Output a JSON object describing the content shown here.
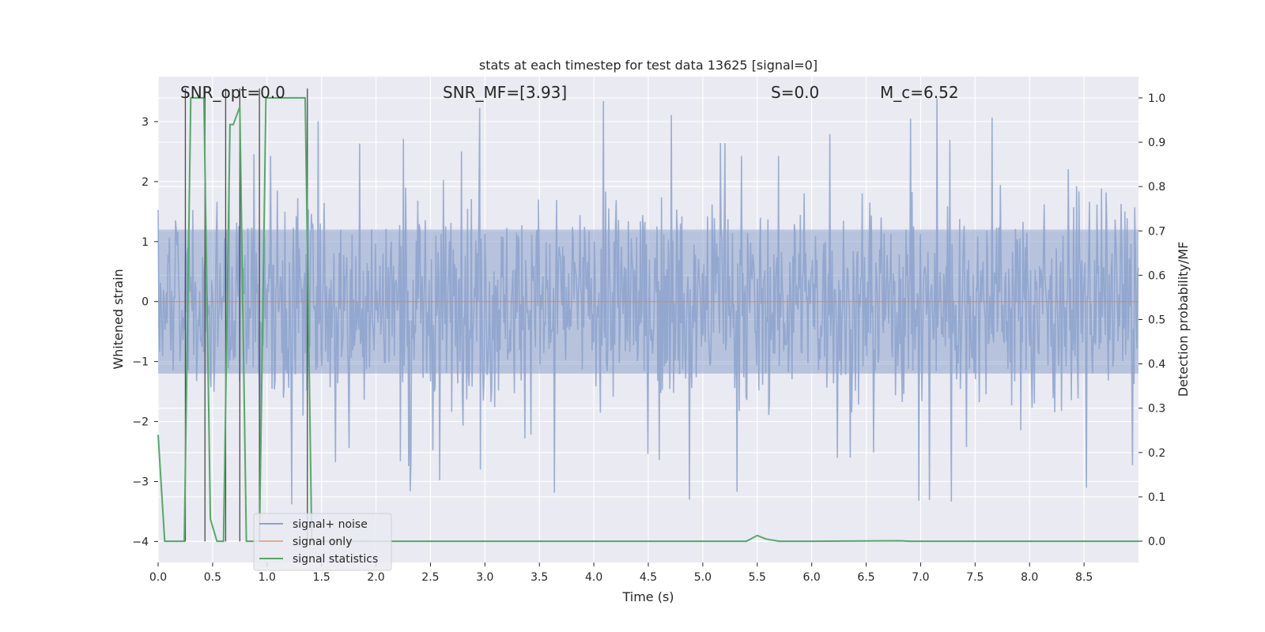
{
  "chart_data": {
    "type": "line",
    "title": "stats at each timestep for test data 13625 [signal=0]",
    "xlabel": "Time (s)",
    "ylabel": "Whitened strain",
    "y2label": "Detection probability/MF",
    "xlim": [
      0,
      9.0
    ],
    "ylim": [
      -4.35,
      3.75
    ],
    "y2lim": [
      -0.048,
      1.048
    ],
    "xticks": [
      "0.0",
      "0.5",
      "1.0",
      "1.5",
      "2.0",
      "2.5",
      "3.0",
      "3.5",
      "4.0",
      "4.5",
      "5.0",
      "5.5",
      "6.0",
      "6.5",
      "7.0",
      "7.5",
      "8.0",
      "8.5"
    ],
    "yticks": [
      "−4",
      "−3",
      "−2",
      "−1",
      "0",
      "1",
      "2",
      "3"
    ],
    "y2ticks": [
      "0.0",
      "0.1",
      "0.2",
      "0.3",
      "0.4",
      "0.5",
      "0.6",
      "0.7",
      "0.8",
      "0.9",
      "1.0"
    ],
    "grid": true,
    "legend_placement": "lower-left",
    "annotations": [
      {
        "id": "snr-opt",
        "text": "SNR_opt=0.0"
      },
      {
        "id": "snr-mf",
        "text": "SNR_MF=[3.93]"
      },
      {
        "id": "s-value",
        "text": "S=0.0"
      },
      {
        "id": "mc-value",
        "text": "M_c=6.52"
      }
    ],
    "series": [
      {
        "name": "signal+ noise",
        "color": "#8da3cc",
        "axis": "left",
        "description_level": "noise-like whitened strain, approx amplitude ±1.2 with spikes up to ±3.5",
        "envelope": {
          "upper_typical": 1.8,
          "lower_typical": -1.8,
          "max": 3.5,
          "min": -4.1
        }
      },
      {
        "name": "signal only",
        "color": "#dd8452",
        "axis": "left",
        "x": [
          0,
          9.0
        ],
        "y": [
          0,
          0
        ]
      },
      {
        "name": "signal statistics",
        "color": "#55a868",
        "axis": "right",
        "x": [
          0.0,
          0.06,
          0.12,
          0.18,
          0.24,
          0.3,
          0.36,
          0.42,
          0.48,
          0.54,
          0.6,
          0.66,
          0.69,
          0.75,
          0.81,
          0.87,
          0.93,
          0.99,
          1.05,
          1.11,
          1.17,
          1.23,
          1.29,
          1.35,
          1.41,
          1.47,
          1.53,
          1.6,
          2.0,
          3.0,
          4.0,
          5.0,
          5.4,
          5.5,
          5.58,
          5.7,
          6.0,
          6.8,
          6.9,
          7.4,
          8.0,
          9.0
        ],
        "y": [
          0.24,
          0.0,
          0.0,
          0.0,
          0.0,
          1.0,
          1.0,
          1.0,
          0.05,
          0.0,
          0.0,
          0.94,
          0.94,
          0.98,
          0.0,
          0.0,
          0.0,
          1.0,
          1.0,
          1.0,
          1.0,
          1.0,
          1.0,
          1.0,
          0.0,
          0.0,
          0.0,
          0.0,
          0.0,
          0.0,
          0.0,
          0.0,
          0.0,
          0.013,
          0.005,
          0.0,
          0.0,
          0.001,
          0.0,
          0.0,
          0.0,
          0.0
        ]
      }
    ]
  },
  "colors": {
    "plot_bg": "#eaeaf2",
    "grid": "#ffffff",
    "noise": "#8da3cc",
    "signal_only": "#dd8452",
    "statistics": "#55a868",
    "vertical_marks": "#4c4c4c"
  }
}
